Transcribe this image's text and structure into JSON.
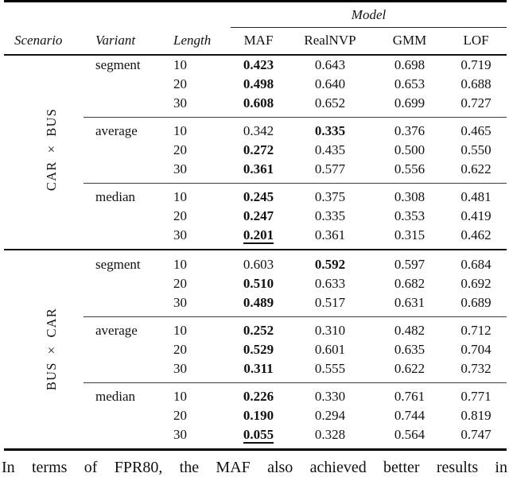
{
  "table": {
    "model_header": "Model",
    "columns": [
      "Scenario",
      "Variant",
      "Length",
      "MAF",
      "RealNVP",
      "GMM",
      "LOF"
    ],
    "scenarios": [
      {
        "name": "CAR × BUS",
        "variants": [
          {
            "name": "segment",
            "rows": [
              {
                "length": "10",
                "values": [
                  "0.423",
                  "0.643",
                  "0.698",
                  "0.719"
                ],
                "bold_col": 0
              },
              {
                "length": "20",
                "values": [
                  "0.498",
                  "0.640",
                  "0.653",
                  "0.688"
                ],
                "bold_col": 0
              },
              {
                "length": "30",
                "values": [
                  "0.608",
                  "0.652",
                  "0.699",
                  "0.727"
                ],
                "bold_col": 0
              }
            ]
          },
          {
            "name": "average",
            "rows": [
              {
                "length": "10",
                "values": [
                  "0.342",
                  "0.335",
                  "0.376",
                  "0.465"
                ],
                "bold_col": 1
              },
              {
                "length": "20",
                "values": [
                  "0.272",
                  "0.435",
                  "0.500",
                  "0.550"
                ],
                "bold_col": 0
              },
              {
                "length": "30",
                "values": [
                  "0.361",
                  "0.577",
                  "0.556",
                  "0.622"
                ],
                "bold_col": 0
              }
            ]
          },
          {
            "name": "median",
            "rows": [
              {
                "length": "10",
                "values": [
                  "0.245",
                  "0.375",
                  "0.308",
                  "0.481"
                ],
                "bold_col": 0
              },
              {
                "length": "20",
                "values": [
                  "0.247",
                  "0.335",
                  "0.353",
                  "0.419"
                ],
                "bold_col": 0
              },
              {
                "length": "30",
                "values": [
                  "0.201",
                  "0.361",
                  "0.315",
                  "0.462"
                ],
                "bold_col": 0,
                "underline_col": 0
              }
            ]
          }
        ]
      },
      {
        "name": "BUS × CAR",
        "variants": [
          {
            "name": "segment",
            "rows": [
              {
                "length": "10",
                "values": [
                  "0.603",
                  "0.592",
                  "0.597",
                  "0.684"
                ],
                "bold_col": 1
              },
              {
                "length": "20",
                "values": [
                  "0.510",
                  "0.633",
                  "0.682",
                  "0.692"
                ],
                "bold_col": 0
              },
              {
                "length": "30",
                "values": [
                  "0.489",
                  "0.517",
                  "0.631",
                  "0.689"
                ],
                "bold_col": 0
              }
            ]
          },
          {
            "name": "average",
            "rows": [
              {
                "length": "10",
                "values": [
                  "0.252",
                  "0.310",
                  "0.482",
                  "0.712"
                ],
                "bold_col": 0
              },
              {
                "length": "20",
                "values": [
                  "0.529",
                  "0.601",
                  "0.635",
                  "0.704"
                ],
                "bold_col": 0
              },
              {
                "length": "30",
                "values": [
                  "0.311",
                  "0.555",
                  "0.622",
                  "0.732"
                ],
                "bold_col": 0
              }
            ]
          },
          {
            "name": "median",
            "rows": [
              {
                "length": "10",
                "values": [
                  "0.226",
                  "0.330",
                  "0.761",
                  "0.771"
                ],
                "bold_col": 0
              },
              {
                "length": "20",
                "values": [
                  "0.190",
                  "0.294",
                  "0.744",
                  "0.819"
                ],
                "bold_col": 0
              },
              {
                "length": "30",
                "values": [
                  "0.055",
                  "0.328",
                  "0.564",
                  "0.747"
                ],
                "bold_col": 0,
                "underline_col": 0
              }
            ]
          }
        ]
      }
    ]
  },
  "body_text": "In terms of FPR80, the MAF also achieved better results in"
}
